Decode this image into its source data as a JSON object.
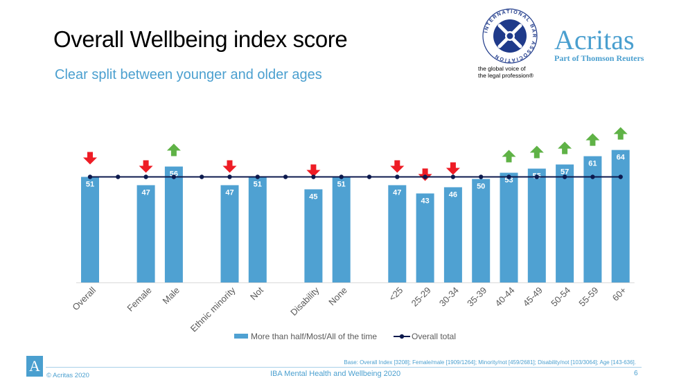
{
  "header": {
    "title": "Overall Wellbeing index score",
    "subtitle": "Clear split between younger and older ages"
  },
  "logos": {
    "iba_ring_text": "INTERNATIONAL BAR ASSOCIATION",
    "iba_tagline": "the global voice of\nthe legal profession®",
    "acritas_name": "Acritas",
    "acritas_sub": "Part of Thomson Reuters"
  },
  "colors": {
    "bar": "#4fa1d2",
    "line": "#0d1a4e",
    "down_arrow": "#ee1c25",
    "up_arrow": "#5fb246",
    "accent": "#4a9fcf"
  },
  "chart_data": {
    "type": "bar",
    "categories": [
      "Overall",
      "Female",
      "Male",
      "Ethnic minority",
      "Not",
      "Disability",
      "None",
      "<25",
      "25-29",
      "30-34",
      "35-39",
      "40-44",
      "45-49",
      "50-54",
      "55-59",
      "60+"
    ],
    "slot_index": [
      0,
      2,
      3,
      5,
      6,
      8,
      9,
      11,
      12,
      13,
      14,
      15,
      16,
      17,
      18,
      19
    ],
    "line_points": 20,
    "series": [
      {
        "name": "More than half/Most/All of the time",
        "type": "bar",
        "values": [
          51,
          47,
          56,
          47,
          51,
          45,
          51,
          47,
          43,
          46,
          50,
          53,
          55,
          57,
          61,
          64
        ]
      },
      {
        "name": "Overall total",
        "type": "line",
        "value": 51
      }
    ],
    "arrows": [
      "down",
      "down",
      "up",
      "down",
      "none",
      "down",
      "none",
      "down",
      "down",
      "down",
      "none",
      "up",
      "up",
      "up",
      "up",
      "up"
    ],
    "grid": false,
    "legend": "bottom"
  },
  "footer": {
    "base_note": "Base: Overall Index [3208]; Female/male [1909/1264]; Minority/not [459/2681]; Disability/not [103/3064]; Age [143-636].",
    "logo_letter": "A",
    "copyright": "© Acritas 2020",
    "title": "IBA Mental Health and Wellbeing 2020",
    "page": "6"
  }
}
